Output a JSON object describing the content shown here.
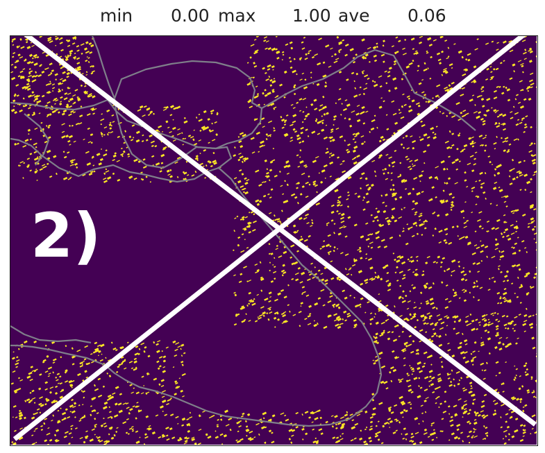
{
  "stats": {
    "min_label": "min",
    "min_value": "0.00",
    "max_label": "max",
    "max_value": "1.00",
    "ave_label": "ave",
    "ave_value": "0.06"
  },
  "panel_label": "2)",
  "colors": {
    "background": "#440154",
    "detection": "#fde725",
    "coastline": "#7f7f8a",
    "cross": "#ffffff"
  }
}
